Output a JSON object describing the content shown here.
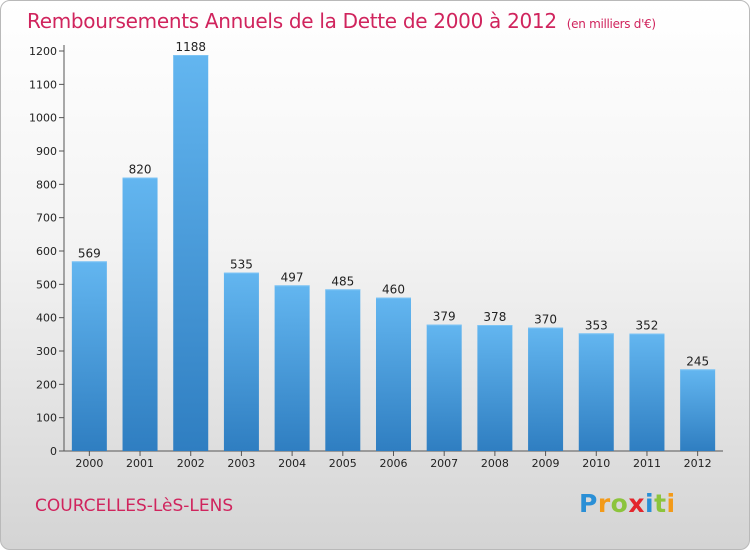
{
  "title": "Remboursements Annuels de la Dette de 2000 à 2012",
  "unit": "(en milliers d'€)",
  "town": "COURCELLES-LèS-LENS",
  "logo": {
    "letters": [
      "P",
      "r",
      "o",
      "x",
      "i",
      "t",
      "i"
    ],
    "colors": [
      "#2a8fd6",
      "#f39a18",
      "#8cc43c",
      "#e3262d",
      "#2a8fd6",
      "#8cc43c",
      "#f39a18"
    ]
  },
  "colors": {
    "bar_top": "#63b6f0",
    "bar_bottom": "#2f7ec1",
    "title": "#d0245d"
  },
  "chart_data": {
    "type": "bar",
    "categories": [
      "2000",
      "2001",
      "2002",
      "2003",
      "2004",
      "2005",
      "2006",
      "2007",
      "2008",
      "2009",
      "2010",
      "2011",
      "2012"
    ],
    "values": [
      569,
      820,
      1188,
      535,
      497,
      485,
      460,
      379,
      378,
      370,
      353,
      352,
      245
    ],
    "yticks": [
      0,
      100,
      200,
      300,
      400,
      500,
      600,
      700,
      800,
      900,
      1000,
      1100,
      1200
    ],
    "ylim": [
      0,
      1200
    ],
    "grid": false
  }
}
